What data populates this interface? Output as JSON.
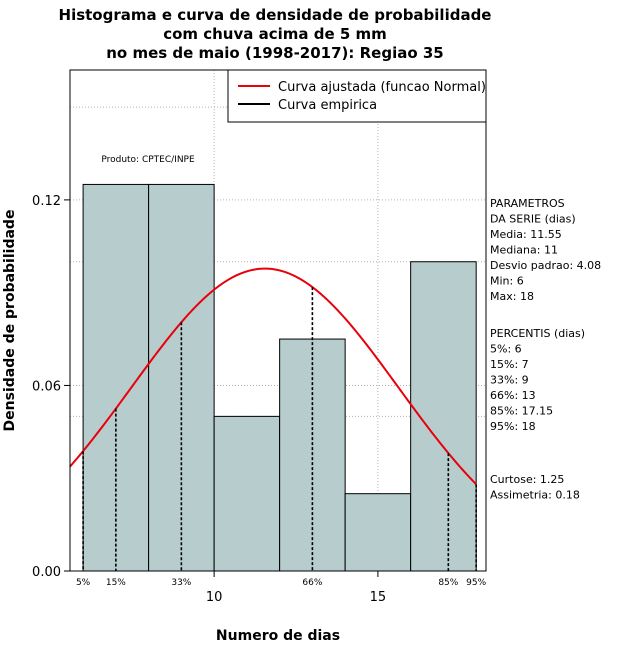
{
  "chart_data": {
    "type": "bar",
    "title_lines": [
      "Histograma e curva de densidade de probabilidade",
      "com chuva acima de 5 mm",
      "no mes de maio (1998-2017): Regiao 35"
    ],
    "xlabel": "Numero de dias",
    "ylabel": "Densidade de probabilidade",
    "xlim": [
      5.6,
      18.3
    ],
    "ylim": [
      0,
      0.162
    ],
    "x_ticks": [
      10,
      15
    ],
    "y_ticks": [
      {
        "value": 0.0,
        "label": "0.00"
      },
      {
        "value": 0.06,
        "label": "0.06"
      },
      {
        "value": 0.12,
        "label": "0.12"
      }
    ],
    "grid": true,
    "bins": [
      {
        "start": 6,
        "end": 8,
        "density": 0.125
      },
      {
        "start": 8,
        "end": 10,
        "density": 0.125
      },
      {
        "start": 10,
        "end": 12,
        "density": 0.05
      },
      {
        "start": 12,
        "end": 14,
        "density": 0.075
      },
      {
        "start": 14,
        "end": 16,
        "density": 0.025
      },
      {
        "start": 16,
        "end": 18,
        "density": 0.1
      }
    ],
    "bar_color": "#b7cdcd",
    "normal_curve": {
      "mean": 11.55,
      "sd": 4.08,
      "color": "#e8000b"
    },
    "percentile_markers": [
      {
        "label": "5%",
        "x": 6
      },
      {
        "label": "15%",
        "x": 7
      },
      {
        "label": "33%",
        "x": 9
      },
      {
        "label": "66%",
        "x": 13
      },
      {
        "label": "85%",
        "x": 17.15
      },
      {
        "label": "95%",
        "x": 18
      }
    ],
    "legend": {
      "placement": "top-right",
      "entries": [
        {
          "name": "Curva ajustada (funcao Normal)",
          "color": "#e8000b"
        },
        {
          "name": "Curva empirica",
          "color": "#000000"
        }
      ]
    },
    "product_label": "Produto: CPTEC/INPE",
    "parameters_block": [
      "PARAMETROS",
      "DA SERIE (dias)",
      "  Media: 11.55",
      "  Mediana: 11",
      "  Desvio padrao: 4.08",
      "  Min: 6",
      "  Max: 18"
    ],
    "percentiles_block": [
      "PERCENTIS (dias)",
      "  5%: 6",
      "  15%: 7",
      "  33%: 9",
      "  66%: 13",
      "  85%: 17.15",
      "  95%: 18"
    ],
    "shape_block": [
      "    Curtose: 1.25",
      "Assimetria: 0.18"
    ]
  }
}
